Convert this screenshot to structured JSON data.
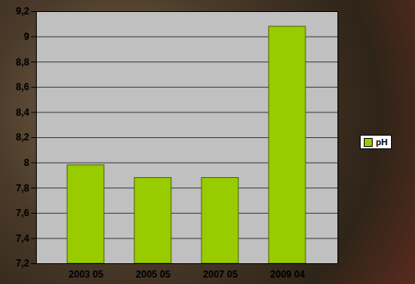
{
  "chart_data": {
    "type": "bar",
    "categories": [
      "2003 05",
      "2005 05",
      "2007 05",
      "2009 04"
    ],
    "series": [
      {
        "name": "pH",
        "color": "#99cc00",
        "values": [
          7.98,
          7.88,
          7.88,
          9.08
        ]
      }
    ],
    "ylim": [
      7.2,
      9.2
    ],
    "yticks": [
      {
        "value": 7.2,
        "label": "7,2"
      },
      {
        "value": 7.4,
        "label": "7,4"
      },
      {
        "value": 7.6,
        "label": "7,6"
      },
      {
        "value": 7.8,
        "label": "7,8"
      },
      8,
      {
        "value": 8.2,
        "label": "8,2"
      },
      {
        "value": 8.4,
        "label": "8,4"
      },
      {
        "value": 8.6,
        "label": "8,6"
      },
      {
        "value": 8.8,
        "label": "8,8"
      },
      9,
      {
        "value": 9.2,
        "label": "9,2"
      }
    ],
    "grid": true,
    "legend": "right"
  }
}
